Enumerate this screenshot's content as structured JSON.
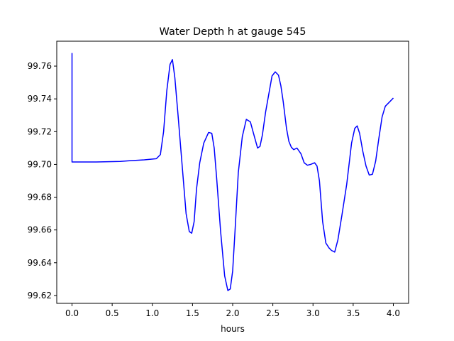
{
  "chart_data": {
    "type": "line",
    "title": "Water Depth h at gauge 545",
    "xlabel": "hours",
    "ylabel": "",
    "xlim": [
      -0.19,
      4.19
    ],
    "ylim": [
      99.6152,
      99.7752
    ],
    "x_ticks": [
      0.0,
      0.5,
      1.0,
      1.5,
      2.0,
      2.5,
      3.0,
      3.5,
      4.0
    ],
    "x_tick_labels": [
      "0.0",
      "0.5",
      "1.0",
      "1.5",
      "2.0",
      "2.5",
      "3.0",
      "3.5",
      "4.0"
    ],
    "y_ticks": [
      99.62,
      99.64,
      99.66,
      99.68,
      99.7,
      99.72,
      99.74,
      99.76
    ],
    "y_tick_labels": [
      "99.62",
      "99.64",
      "99.66",
      "99.68",
      "99.70",
      "99.72",
      "99.74",
      "99.76"
    ],
    "grid": false,
    "series": [
      {
        "color": "#0000ff",
        "x": [
          0.0,
          0.0,
          0.05,
          0.3,
          0.6,
          0.7,
          0.9,
          1.05,
          1.1,
          1.14,
          1.18,
          1.22,
          1.25,
          1.28,
          1.32,
          1.37,
          1.42,
          1.46,
          1.49,
          1.52,
          1.55,
          1.59,
          1.64,
          1.7,
          1.74,
          1.77,
          1.8,
          1.85,
          1.9,
          1.94,
          1.97,
          2.0,
          2.03,
          2.07,
          2.12,
          2.17,
          2.22,
          2.27,
          2.31,
          2.34,
          2.37,
          2.41,
          2.45,
          2.49,
          2.53,
          2.57,
          2.6,
          2.63,
          2.67,
          2.7,
          2.73,
          2.76,
          2.8,
          2.85,
          2.89,
          2.93,
          2.97,
          3.02,
          3.05,
          3.08,
          3.12,
          3.16,
          3.2,
          3.23,
          3.27,
          3.31,
          3.36,
          3.42,
          3.48,
          3.52,
          3.55,
          3.58,
          3.62,
          3.66,
          3.7,
          3.74,
          3.78,
          3.82,
          3.86,
          3.9,
          3.95,
          4.0
        ],
        "y": [
          99.768,
          99.7015,
          99.7015,
          99.7015,
          99.7018,
          99.7022,
          99.7028,
          99.7035,
          99.706,
          99.72,
          99.745,
          99.761,
          99.764,
          99.753,
          99.73,
          99.7,
          99.67,
          99.659,
          99.658,
          99.665,
          99.685,
          99.701,
          99.713,
          99.7195,
          99.719,
          99.71,
          99.692,
          99.659,
          99.632,
          99.623,
          99.624,
          99.635,
          99.66,
          99.695,
          99.717,
          99.7275,
          99.726,
          99.717,
          99.71,
          99.711,
          99.718,
          99.732,
          99.743,
          99.754,
          99.7565,
          99.7545,
          99.748,
          99.738,
          99.722,
          99.714,
          99.7105,
          99.709,
          99.71,
          99.7065,
          99.701,
          99.6995,
          99.7,
          99.701,
          99.699,
          99.69,
          99.665,
          99.652,
          99.649,
          99.6475,
          99.6465,
          99.654,
          99.669,
          99.688,
          99.713,
          99.722,
          99.7235,
          99.719,
          99.708,
          99.699,
          99.6935,
          99.694,
          99.702,
          99.716,
          99.729,
          99.7355,
          99.738,
          99.7405
        ]
      }
    ]
  }
}
